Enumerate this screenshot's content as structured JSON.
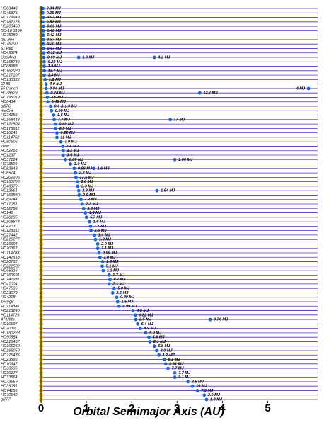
{
  "chart_data": {
    "type": "dot-rows",
    "x_label": "Orbital Semimajor Axis  (AU)",
    "xlim": [
      0,
      6.1
    ],
    "xticks": [
      0,
      1,
      2,
      3,
      4,
      5
    ],
    "colors": {
      "planet": "#1a66d6",
      "star": "#f2c014",
      "row_line": "#5a2fb0"
    },
    "rows": [
      {
        "star": "HD83443",
        "planets": [
          {
            "a": 0.04,
            "mass": "0.34 MJ"
          }
        ]
      },
      {
        "star": "HD46375",
        "planets": [
          {
            "a": 0.04,
            "mass": "0.25 MJ"
          }
        ]
      },
      {
        "star": "HD179949",
        "planets": [
          {
            "a": 0.05,
            "mass": "0.93 MJ"
          }
        ]
      },
      {
        "star": "HD187123",
        "planets": [
          {
            "a": 0.04,
            "mass": "0.52 MJ"
          }
        ]
      },
      {
        "star": "HD209458",
        "planets": [
          {
            "a": 0.05,
            "mass": "0.69 MJ"
          }
        ]
      },
      {
        "star": "BD-10 3166",
        "planets": [
          {
            "a": 0.05,
            "mass": "0.48 MJ"
          }
        ]
      },
      {
        "star": "HD75289",
        "planets": [
          {
            "a": 0.05,
            "mass": "0.42 MJ"
          }
        ]
      },
      {
        "star": "tau Boo",
        "planets": [
          {
            "a": 0.05,
            "mass": "3.87 MJ"
          }
        ]
      },
      {
        "star": "HD76700",
        "planets": [
          {
            "a": 0.05,
            "mass": "0.20 MJ"
          }
        ]
      },
      {
        "star": "51 Peg",
        "planets": [
          {
            "a": 0.05,
            "mass": "0.47 MJ"
          }
        ]
      },
      {
        "star": "HD49674",
        "planets": [
          {
            "a": 0.06,
            "mass": "0.12 MJ"
          }
        ]
      },
      {
        "star": "Ups And",
        "planets": [
          {
            "a": 0.06,
            "mass": "0.69 MJ"
          },
          {
            "a": 0.83,
            "mass": "1.9 MJ"
          },
          {
            "a": 2.5,
            "mass": "4.2 MJ"
          }
        ]
      },
      {
        "star": "HD168746",
        "planets": [
          {
            "a": 0.07,
            "mass": "0.23 MJ"
          }
        ]
      },
      {
        "star": "HD68988",
        "planets": [
          {
            "a": 0.07,
            "mass": "1.9 MJ"
          }
        ]
      },
      {
        "star": "HD162020",
        "planets": [
          {
            "a": 0.07,
            "mass": "13.7 MJ"
          }
        ]
      },
      {
        "star": "HD217107",
        "planets": [
          {
            "a": 0.07,
            "mass": "1.3 MJ"
          }
        ]
      },
      {
        "star": "HD130322",
        "planets": [
          {
            "a": 0.09,
            "mass": "1.1 MJ"
          }
        ]
      },
      {
        "star": "Gl 86",
        "planets": [
          {
            "a": 0.11,
            "mass": "4.0 MJ"
          }
        ]
      },
      {
        "star": "55 Cancri",
        "planets": [
          {
            "a": 0.11,
            "mass": "0.84 MJ"
          },
          {
            "a": 5.9,
            "mass": "4 MJ"
          }
        ]
      },
      {
        "star": "HD38529",
        "planets": [
          {
            "a": 0.13,
            "mass": "0.78 MJ"
          },
          {
            "a": 3.5,
            "mass": "12.7 MJ"
          }
        ]
      },
      {
        "star": "HD195019",
        "planets": [
          {
            "a": 0.14,
            "mass": "3.5 MJ"
          }
        ]
      },
      {
        "star": "HD6434",
        "planets": [
          {
            "a": 0.15,
            "mass": "0.48 MJ"
          }
        ]
      },
      {
        "star": "gl876",
        "planets": [
          {
            "a": 0.21,
            "mass": "0.6 & 1.9 MJ"
          }
        ]
      },
      {
        "star": "rhoCrb",
        "planets": [
          {
            "a": 0.23,
            "mass": "0.99 MJ"
          }
        ]
      },
      {
        "star": "HD74156",
        "planets": [
          {
            "a": 0.28,
            "mass": "1.6 MJ"
          }
        ]
      },
      {
        "star": "HD168443",
        "planets": [
          {
            "a": 0.29,
            "mass": "7.7 MJ"
          },
          {
            "a": 2.85,
            "mass": "17 MJ"
          }
        ]
      },
      {
        "star": "HD121504",
        "planets": [
          {
            "a": 0.32,
            "mass": "0.89 MJ"
          }
        ]
      },
      {
        "star": "HD178911",
        "planets": [
          {
            "a": 0.32,
            "mass": "6.5 MJ"
          }
        ]
      },
      {
        "star": "HD16141",
        "planets": [
          {
            "a": 0.35,
            "mass": "0.22 MJ"
          }
        ]
      },
      {
        "star": "HD114762",
        "planets": [
          {
            "a": 0.35,
            "mass": "11 MJ"
          }
        ]
      },
      {
        "star": "HD80606",
        "planets": [
          {
            "a": 0.44,
            "mass": "3.9 MJ"
          }
        ]
      },
      {
        "star": "70vir",
        "planets": [
          {
            "a": 0.48,
            "mass": "7.4 MJ"
          }
        ]
      },
      {
        "star": "HD52265",
        "planets": [
          {
            "a": 0.49,
            "mass": "1.1 MJ"
          }
        ]
      },
      {
        "star": "HD1237",
        "planets": [
          {
            "a": 0.49,
            "mass": "3.4 MJ"
          }
        ]
      },
      {
        "star": "HD37124",
        "planets": [
          {
            "a": 0.54,
            "mass": "0.86 MJ"
          },
          {
            "a": 2.95,
            "mass": "1.00 MJ"
          }
        ]
      },
      {
        "star": "HD73526",
        "planets": [
          {
            "a": 0.65,
            "mass": "3.0 MJ"
          }
        ]
      },
      {
        "star": "HD82943",
        "planets": [
          {
            "a": 0.73,
            "mass": "0.88 MJ"
          },
          {
            "a": 1.16,
            "mass": "1.6 MJ"
          }
        ]
      },
      {
        "star": "HD8574",
        "planets": [
          {
            "a": 0.76,
            "mass": "2.2 MJ"
          }
        ]
      },
      {
        "star": "HD202206",
        "planets": [
          {
            "a": 0.77,
            "mass": "17.5 MJ"
          }
        ]
      },
      {
        "star": "HD150706",
        "planets": [
          {
            "a": 0.8,
            "mass": "1.0 MJ"
          }
        ]
      },
      {
        "star": "HD40979",
        "planets": [
          {
            "a": 0.81,
            "mass": "3.3 MJ"
          }
        ]
      },
      {
        "star": "HD12661",
        "planets": [
          {
            "a": 0.83,
            "mass": "2.3 MJ"
          },
          {
            "a": 2.56,
            "mass": "1.54 MJ"
          }
        ]
      },
      {
        "star": "HD169830",
        "planets": [
          {
            "a": 0.84,
            "mass": "2.9 MJ"
          }
        ]
      },
      {
        "star": "HD89744",
        "planets": [
          {
            "a": 0.88,
            "mass": "7.2 MJ"
          }
        ]
      },
      {
        "star": "HD17051",
        "planets": [
          {
            "a": 0.91,
            "mass": "2.3 MJ"
          }
        ]
      },
      {
        "star": "HD92788",
        "planets": [
          {
            "a": 0.94,
            "mass": "3.8 MJ"
          }
        ]
      },
      {
        "star": "HD142",
        "planets": [
          {
            "a": 0.98,
            "mass": "1.4 MJ"
          }
        ]
      },
      {
        "star": "HD28185",
        "planets": [
          {
            "a": 1.0,
            "mass": "5.7 MJ"
          }
        ]
      },
      {
        "star": "HD108874",
        "planets": [
          {
            "a": 1.07,
            "mass": "1.6 MJ"
          }
        ]
      },
      {
        "star": "HD4203",
        "planets": [
          {
            "a": 1.09,
            "mass": "1.7 MJ"
          }
        ]
      },
      {
        "star": "HD128311",
        "planets": [
          {
            "a": 1.1,
            "mass": "2.6 MJ"
          }
        ]
      },
      {
        "star": "HD27442",
        "planets": [
          {
            "a": 1.18,
            "mass": "1.4 MJ"
          }
        ]
      },
      {
        "star": "HD210277",
        "planets": [
          {
            "a": 1.2,
            "mass": "1.3 MJ"
          }
        ]
      },
      {
        "star": "HD19994",
        "planets": [
          {
            "a": 1.25,
            "mass": "2.0 MJ"
          }
        ]
      },
      {
        "star": "HD20367",
        "planets": [
          {
            "a": 1.25,
            "mass": "1.1 MJ"
          }
        ]
      },
      {
        "star": "HD114783",
        "planets": [
          {
            "a": 1.28,
            "mass": "0.99 MJ"
          }
        ]
      },
      {
        "star": "HD147513",
        "planets": [
          {
            "a": 1.3,
            "mass": "1.0 MJ"
          }
        ]
      },
      {
        "star": "HD20782",
        "planets": [
          {
            "a": 1.36,
            "mass": "1.8 MJ"
          }
        ]
      },
      {
        "star": "HD222582",
        "planets": [
          {
            "a": 1.35,
            "mass": "5.1 MJ"
          }
        ]
      },
      {
        "star": "HD65216",
        "planets": [
          {
            "a": 1.37,
            "mass": "1.2 MJ"
          }
        ]
      },
      {
        "star": "HD160691",
        "planets": [
          {
            "a": 1.5,
            "mass": "1.7 MJ"
          }
        ]
      },
      {
        "star": "HD141937",
        "planets": [
          {
            "a": 1.52,
            "mass": "9.7 MJ"
          }
        ]
      },
      {
        "star": "HD41004",
        "planets": [
          {
            "a": 1.5,
            "mass": "2.3 MJ"
          }
        ]
      },
      {
        "star": "HD47536",
        "planets": [
          {
            "a": 1.61,
            "mass": "5.0 MJ"
          }
        ]
      },
      {
        "star": "HD23079",
        "planets": [
          {
            "a": 1.58,
            "mass": "2.5 MJ"
          }
        ]
      },
      {
        "star": "HD4208",
        "planets": [
          {
            "a": 1.67,
            "mass": "0.80 MJ"
          }
        ]
      },
      {
        "star": "16cygB",
        "planets": [
          {
            "a": 1.69,
            "mass": "1.5 MJ"
          }
        ]
      },
      {
        "star": "HD114386",
        "planets": [
          {
            "a": 1.72,
            "mass": "0.99 MJ"
          }
        ]
      },
      {
        "star": "HD213240",
        "planets": [
          {
            "a": 2.03,
            "mass": "4.5 MJ"
          }
        ]
      },
      {
        "star": "HD114729",
        "planets": [
          {
            "a": 2.08,
            "mass": "0.82 MJ"
          }
        ]
      },
      {
        "star": "47 UMa",
        "planets": [
          {
            "a": 2.09,
            "mass": "2.5 MJ"
          },
          {
            "a": 3.73,
            "mass": "0.76 MJ"
          }
        ]
      },
      {
        "star": "HD10697",
        "planets": [
          {
            "a": 2.13,
            "mass": "6.4 MJ"
          }
        ]
      },
      {
        "star": "HD2039",
        "planets": [
          {
            "a": 2.19,
            "mass": "4.9 MJ"
          }
        ]
      },
      {
        "star": "HD190228",
        "planets": [
          {
            "a": 2.31,
            "mass": "5.0 MJ"
          }
        ]
      },
      {
        "star": "HD50554",
        "planets": [
          {
            "a": 2.38,
            "mass": "4.9 MJ"
          }
        ]
      },
      {
        "star": "HD216437",
        "planets": [
          {
            "a": 2.4,
            "mass": "2.1 MJ"
          }
        ]
      },
      {
        "star": "HD106252",
        "planets": [
          {
            "a": 2.5,
            "mass": "6.8 MJ"
          }
        ]
      },
      {
        "star": "HD196050",
        "planets": [
          {
            "a": 2.55,
            "mass": "3.0 MJ"
          }
        ]
      },
      {
        "star": "HD216435",
        "planets": [
          {
            "a": 2.6,
            "mass": "1.2 MJ"
          }
        ]
      },
      {
        "star": "HD23596",
        "planets": [
          {
            "a": 2.72,
            "mass": "8.1 MJ"
          }
        ]
      },
      {
        "star": "HD10647",
        "planets": [
          {
            "a": 2.75,
            "mass": "0.91 MJ"
          }
        ]
      },
      {
        "star": "HD33636",
        "planets": [
          {
            "a": 2.8,
            "mass": "7.7 MJ"
          }
        ]
      },
      {
        "star": "HD30177",
        "planets": [
          {
            "a": 2.95,
            "mass": "7.7 MJ"
          }
        ]
      },
      {
        "star": "HD33564",
        "planets": [
          {
            "a": 2.95,
            "mass": "9.1 MJ"
          }
        ]
      },
      {
        "star": "HD72659",
        "planets": [
          {
            "a": 3.24,
            "mass": "2.5 MJ"
          }
        ]
      },
      {
        "star": "HD39091",
        "planets": [
          {
            "a": 3.34,
            "mass": "10 MJ"
          }
        ]
      },
      {
        "star": "HD74156",
        "planets": [
          {
            "a": 3.45,
            "mass": "7.5 MJ"
          }
        ]
      },
      {
        "star": "HD70642",
        "planets": [
          {
            "a": 3.6,
            "mass": "2.0 MJ"
          }
        ]
      },
      {
        "star": "gl777",
        "planets": [
          {
            "a": 3.65,
            "mass": "1.3 MJ"
          }
        ]
      }
    ]
  }
}
